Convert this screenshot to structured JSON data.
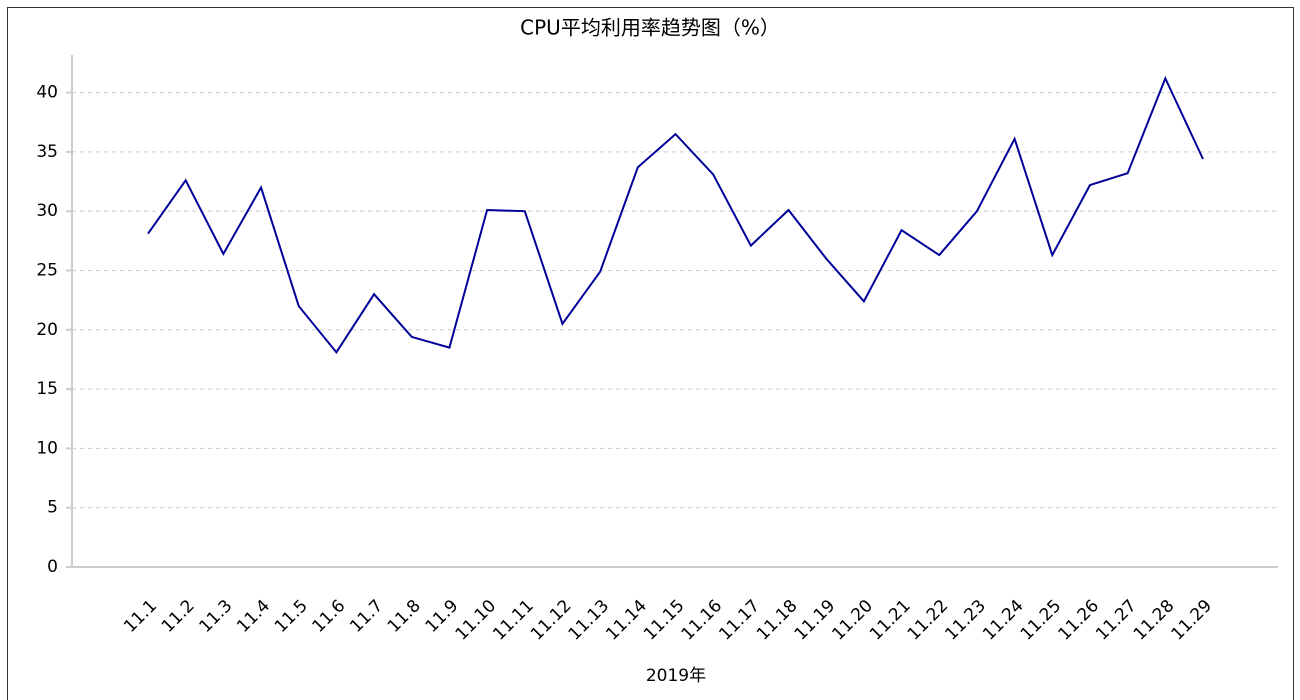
{
  "chart_data": {
    "type": "line",
    "title": "CPU平均利用率趋势图（%）",
    "xlabel": "2019年",
    "categories": [
      "11.1",
      "11.2",
      "11.3",
      "11.4",
      "11.5",
      "11.6",
      "11.7",
      "11.8",
      "11.9",
      "11.10",
      "11.11",
      "11.12",
      "11.13",
      "11.14",
      "11.15",
      "11.16",
      "11.17",
      "11.18",
      "11.19",
      "11.20",
      "11.21",
      "11.22",
      "11.23",
      "11.24",
      "11.25",
      "11.26",
      "11.27",
      "11.28",
      "11.29"
    ],
    "values": [
      28.1,
      32.6,
      26.4,
      32.0,
      22.0,
      18.1,
      23.0,
      19.4,
      18.5,
      30.1,
      30.0,
      20.5,
      24.9,
      33.7,
      36.5,
      33.1,
      27.1,
      30.1,
      26.0,
      22.4,
      28.4,
      26.3,
      30.0,
      36.1,
      26.3,
      32.2,
      33.2,
      41.2,
      34.4
    ],
    "color": "#000099",
    "ylim": [
      0,
      43
    ],
    "yticks": [
      0,
      5,
      10,
      15,
      20,
      25,
      30,
      35,
      40
    ],
    "grid": true
  }
}
